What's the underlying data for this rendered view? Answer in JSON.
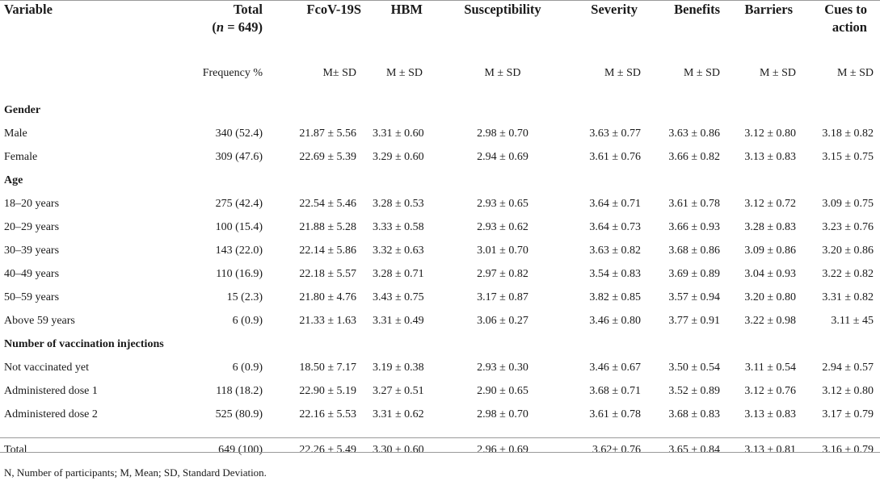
{
  "headers": {
    "variable": "Variable",
    "total_line1": "Total",
    "total_line2": "(n = 649)",
    "fcov": "FcoV-19S",
    "hbm": "HBM",
    "susceptibility": "Susceptibility",
    "severity": "Severity",
    "benefits": "Benefits",
    "barriers": "Barriers",
    "cues_line1": "Cues to",
    "cues_line2": "action"
  },
  "subheaders": {
    "total": "Frequency %",
    "fcov": "M± SD",
    "hbm": "M ± SD",
    "susceptibility": "M ± SD",
    "severity": "M ± SD",
    "benefits": "M ± SD",
    "barriers": "M ± SD",
    "cues": "M ± SD"
  },
  "sections": [
    {
      "title": "Gender",
      "rows": [
        {
          "label": "Male",
          "total": "340 (52.4)",
          "fcov": "21.87 ± 5.56",
          "hbm": "3.31 ± 0.60",
          "susceptibility": "2.98 ± 0.70",
          "severity": "3.63 ± 0.77",
          "benefits": "3.63 ± 0.86",
          "barriers": "3.12 ± 0.80",
          "cues": "3.18 ± 0.82"
        },
        {
          "label": "Female",
          "total": "309 (47.6)",
          "fcov": "22.69 ± 5.39",
          "hbm": "3.29 ± 0.60",
          "susceptibility": "2.94 ± 0.69",
          "severity": "3.61 ± 0.76",
          "benefits": "3.66 ± 0.82",
          "barriers": "3.13 ± 0.83",
          "cues": "3.15 ± 0.75"
        }
      ]
    },
    {
      "title": "Age",
      "rows": [
        {
          "label": "18–20 years",
          "total": "275 (42.4)",
          "fcov": "22.54 ± 5.46",
          "hbm": "3.28 ± 0.53",
          "susceptibility": "2.93 ± 0.65",
          "severity": "3.64 ± 0.71",
          "benefits": "3.61 ± 0.78",
          "barriers": "3.12 ± 0.72",
          "cues": "3.09 ± 0.75"
        },
        {
          "label": "20–29 years",
          "total": "100 (15.4)",
          "fcov": "21.88 ± 5.28",
          "hbm": "3.33 ± 0.58",
          "susceptibility": "2.93 ± 0.62",
          "severity": "3.64 ± 0.73",
          "benefits": "3.66 ± 0.93",
          "barriers": "3.28 ± 0.83",
          "cues": "3.23 ± 0.76"
        },
        {
          "label": "30–39 years",
          "total": "143 (22.0)",
          "fcov": "22.14 ± 5.86",
          "hbm": "3.32 ± 0.63",
          "susceptibility": "3.01 ± 0.70",
          "severity": "3.63 ± 0.82",
          "benefits": "3.68 ± 0.86",
          "barriers": "3.09 ± 0.86",
          "cues": "3.20 ± 0.86"
        },
        {
          "label": "40–49 years",
          "total": "110 (16.9)",
          "fcov": "22.18 ± 5.57",
          "hbm": "3.28 ± 0.71",
          "susceptibility": "2.97 ± 0.82",
          "severity": "3.54 ± 0.83",
          "benefits": "3.69 ± 0.89",
          "barriers": "3.04 ± 0.93",
          "cues": "3.22 ± 0.82"
        },
        {
          "label": "50–59 years",
          "total": "15 (2.3)",
          "fcov": "21.80 ± 4.76",
          "hbm": "3.43 ± 0.75",
          "susceptibility": "3.17 ± 0.87",
          "severity": "3.82 ± 0.85",
          "benefits": "3.57 ± 0.94",
          "barriers": "3.20 ± 0.80",
          "cues": "3.31 ± 0.82"
        },
        {
          "label": "Above 59 years",
          "total": "6 (0.9)",
          "fcov": "21.33 ± 1.63",
          "hbm": "3.31 ± 0.49",
          "susceptibility": "3.06 ± 0.27",
          "severity": "3.46 ± 0.80",
          "benefits": "3.77 ± 0.91",
          "barriers": "3.22 ± 0.98",
          "cues": "3.11 ± 45"
        }
      ]
    },
    {
      "title": "Number of vaccination injections",
      "rows": [
        {
          "label": "Not vaccinated yet",
          "total": "6 (0.9)",
          "fcov": "18.50 ± 7.17",
          "hbm": "3.19 ± 0.38",
          "susceptibility": "2.93 ± 0.30",
          "severity": "3.46 ± 0.67",
          "benefits": "3.50 ± 0.54",
          "barriers": "3.11 ± 0.54",
          "cues": "2.94 ± 0.57"
        },
        {
          "label": "Administered dose 1",
          "total": "118 (18.2)",
          "fcov": "22.90 ± 5.19",
          "hbm": "3.27 ± 0.51",
          "susceptibility": "2.90 ± 0.65",
          "severity": "3.68 ± 0.71",
          "benefits": "3.52 ± 0.89",
          "barriers": "3.12 ± 0.76",
          "cues": "3.12 ± 0.80"
        },
        {
          "label": "Administered dose 2",
          "total": "525 (80.9)",
          "fcov": "22.16 ± 5.53",
          "hbm": "3.31 ± 0.62",
          "susceptibility": "2.98 ± 0.70",
          "severity": "3.61 ± 0.78",
          "benefits": "3.68 ± 0.83",
          "barriers": "3.13 ± 0.83",
          "cues": "3.17 ± 0.79"
        }
      ]
    }
  ],
  "total_row": {
    "label": "Total",
    "total": "649 (100)",
    "fcov": "22.26 ± 5.49",
    "hbm": "3.30 ± 0.60",
    "susceptibility": "2.96 ± 0.69",
    "severity": "3.62± 0.76",
    "benefits": "3.65 ± 0.84",
    "barriers": "3.13 ± 0.81",
    "cues": "3.16 ± 0.79"
  },
  "footnote": "N, Number of participants; M, Mean; SD, Standard Deviation."
}
